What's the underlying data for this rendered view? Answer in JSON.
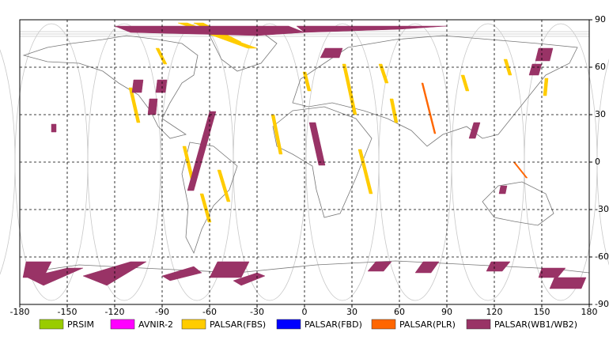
{
  "chart_data": {
    "type": "map",
    "xlim": [
      -180,
      180
    ],
    "ylim": [
      -90,
      90
    ],
    "xticks": [
      -180,
      -150,
      -120,
      -90,
      -60,
      -30,
      0,
      30,
      60,
      90,
      120,
      150,
      180
    ],
    "yticks": [
      -90,
      -60,
      -30,
      0,
      30,
      60,
      90
    ],
    "grid": true,
    "series": [
      {
        "name": "PRSIM",
        "color": "#99cc00"
      },
      {
        "name": "AVNIR-2",
        "color": "#ff00ff"
      },
      {
        "name": "PALSAR(FBS)",
        "color": "#ffcc00",
        "swaths": [
          {
            "lon": [
              -94,
              -92,
              -87,
              -89
            ],
            "lat": [
              72,
              72,
              62,
              62
            ]
          },
          {
            "lon": [
              -111,
              -109,
              -104,
              -106
            ],
            "lat": [
              47,
              47,
              25,
              25
            ]
          },
          {
            "lon": [
              -77,
              -75,
              -69,
              -71
            ],
            "lat": [
              10,
              10,
              -15,
              -15
            ]
          },
          {
            "lon": [
              -66,
              -64,
              -59,
              -61
            ],
            "lat": [
              -20,
              -20,
              -38,
              -38
            ]
          },
          {
            "lon": [
              -55,
              -53,
              -47,
              -49
            ],
            "lat": [
              -5,
              -5,
              -25,
              -25
            ]
          },
          {
            "lon": [
              -21,
              -19,
              -14,
              -16
            ],
            "lat": [
              30,
              30,
              5,
              5
            ]
          },
          {
            "lon": [
              -1,
              1,
              4,
              2
            ],
            "lat": [
              57,
              57,
              45,
              45
            ]
          },
          {
            "lon": [
              24,
              26,
              33,
              31
            ],
            "lat": [
              62,
              62,
              30,
              30
            ]
          },
          {
            "lon": [
              34,
              36,
              43,
              41
            ],
            "lat": [
              8,
              8,
              -20,
              -20
            ]
          },
          {
            "lon": [
              47,
              49,
              53,
              51
            ],
            "lat": [
              62,
              62,
              50,
              50
            ]
          },
          {
            "lon": [
              54,
              56,
              59,
              57
            ],
            "lat": [
              40,
              40,
              25,
              25
            ]
          },
          {
            "lon": [
              99,
              101,
              104,
              102
            ],
            "lat": [
              55,
              55,
              45,
              45
            ]
          },
          {
            "lon": [
              126,
              128,
              131,
              129
            ],
            "lat": [
              65,
              65,
              55,
              55
            ]
          },
          {
            "lon": [
              152,
              154,
              153,
              151
            ],
            "lat": [
              53,
              53,
              42,
              42
            ]
          },
          {
            "lon": [
              -80,
              -74,
              -30,
              -36
            ],
            "lat": [
              88,
              88,
              72,
              72
            ]
          },
          {
            "lon": [
              -70,
              -64,
              -40,
              -46
            ],
            "lat": [
              88,
              88,
              76,
              76
            ]
          }
        ]
      },
      {
        "name": "PALSAR(FBD)",
        "color": "#0000ff"
      },
      {
        "name": "PALSAR(PLR)",
        "color": "#ff6600",
        "swaths": [
          {
            "lon": [
              74,
              75,
              83,
              82
            ],
            "lat": [
              50,
              50,
              18,
              18
            ]
          },
          {
            "lon": [
              132,
              133,
              141,
              140
            ],
            "lat": [
              0,
              0,
              -10,
              -10
            ]
          }
        ]
      },
      {
        "name": "PALSAR(WB1/WB2)",
        "color": "#993366",
        "swaths": [
          {
            "lon": [
              -120,
              -10,
              0,
              -30,
              -110
            ],
            "lat": [
              86,
              86,
              82,
              80,
              82
            ]
          },
          {
            "lon": [
              -5,
              90,
              60,
              0
            ],
            "lat": [
              86,
              86,
              84,
              82
            ]
          },
          {
            "lon": [
              13,
              24,
              22,
              10
            ],
            "lat": [
              72,
              72,
              66,
              66
            ]
          },
          {
            "lon": [
              -108,
              -102,
              -103,
              -109
            ],
            "lat": [
              52,
              52,
              44,
              44
            ]
          },
          {
            "lon": [
              -93,
              -87,
              -88,
              -94
            ],
            "lat": [
              52,
              52,
              44,
              44
            ]
          },
          {
            "lon": [
              -98,
              -93,
              -94,
              -99
            ],
            "lat": [
              40,
              40,
              30,
              30
            ]
          },
          {
            "lon": [
              -60,
              -56,
              -70,
              -74
            ],
            "lat": [
              32,
              32,
              -18,
              -18
            ]
          },
          {
            "lon": [
              3,
              7,
              13,
              9
            ],
            "lat": [
              25,
              25,
              -2,
              -2
            ]
          },
          {
            "lon": [
              107,
              111,
              108,
              104
            ],
            "lat": [
              25,
              25,
              15,
              15
            ]
          },
          {
            "lon": [
              -160,
              -157,
              -157,
              -160
            ],
            "lat": [
              24,
              24,
              19,
              19
            ]
          },
          {
            "lon": [
              144,
              150,
              148,
              142
            ],
            "lat": [
              62,
              62,
              55,
              55
            ]
          },
          {
            "lon": [
              148,
              157,
              155,
              146
            ],
            "lat": [
              72,
              72,
              64,
              64
            ]
          },
          {
            "lon": [
              124,
              128,
              127,
              123
            ],
            "lat": [
              -15,
              -15,
              -20,
              -20
            ]
          },
          {
            "lon": [
              -176,
              -160,
              -165,
              -178
            ],
            "lat": [
              -63,
              -63,
              -73,
              -73
            ]
          },
          {
            "lon": [
              -175,
              -150,
              -140,
              -165
            ],
            "lat": [
              -73,
              -67,
              -67,
              -78
            ]
          },
          {
            "lon": [
              -140,
              -110,
              -100,
              -125
            ],
            "lat": [
              -72,
              -63,
              -63,
              -78
            ]
          },
          {
            "lon": [
              -90,
              -70,
              -65,
              -85
            ],
            "lat": [
              -72,
              -66,
              -70,
              -75
            ]
          },
          {
            "lon": [
              -55,
              -35,
              -40,
              -60
            ],
            "lat": [
              -63,
              -63,
              -73,
              -73
            ]
          },
          {
            "lon": [
              -45,
              -30,
              -25,
              -40
            ],
            "lat": [
              -75,
              -70,
              -72,
              -78
            ]
          },
          {
            "lon": [
              45,
              55,
              50,
              40
            ],
            "lat": [
              -63,
              -63,
              -69,
              -69
            ]
          },
          {
            "lon": [
              75,
              85,
              80,
              70
            ],
            "lat": [
              -63,
              -63,
              -70,
              -70
            ]
          },
          {
            "lon": [
              118,
              130,
              125,
              115
            ],
            "lat": [
              -63,
              -63,
              -69,
              -69
            ]
          },
          {
            "lon": [
              150,
              165,
              160,
              148
            ],
            "lat": [
              -67,
              -67,
              -73,
              -73
            ]
          },
          {
            "lon": [
              158,
              178,
              175,
              155
            ],
            "lat": [
              -73,
              -73,
              -80,
              -80
            ]
          }
        ]
      }
    ]
  }
}
